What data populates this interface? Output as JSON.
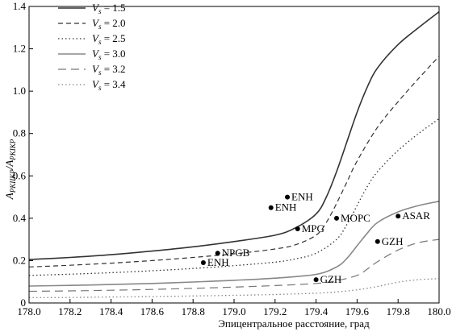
{
  "chart_data": {
    "type": "line",
    "xlabel": "Эпицентральное расстояние, град",
    "ylabel": "A_PKIIKP/A_PKIKP",
    "ylabel_main": "A",
    "ylabel_sub_num": "PKIIKP",
    "ylabel_slash": "/A",
    "ylabel_sub_den": "PKIKP",
    "xlim": [
      178.0,
      180.0
    ],
    "ylim": [
      0.0,
      1.4
    ],
    "x_ticks": [
      178.0,
      178.2,
      178.4,
      178.6,
      178.8,
      179.0,
      179.2,
      179.4,
      179.6,
      179.8,
      180.0
    ],
    "x_tick_labels": [
      "178.0",
      "178.2",
      "178.4",
      "178.6",
      "178.8",
      "179.0",
      "179.2",
      "179.4",
      "179.6",
      "179.8",
      "180.0"
    ],
    "y_ticks": [
      0,
      0.2,
      0.4,
      0.6,
      0.8,
      1.0,
      1.2,
      1.4
    ],
    "y_tick_labels": [
      "0",
      "0.2",
      "0.4",
      "0.6",
      "0.8",
      "1.0",
      "1.2",
      "1.4"
    ],
    "grid": false,
    "legend_position": "top-left",
    "series": [
      {
        "name": "V_s = 1.5",
        "label_prefix": "V",
        "label_sub": "s",
        "label_value": " = 1.5",
        "color": "#333333",
        "dash": "",
        "width": 1.6,
        "points": [
          [
            178.0,
            0.205
          ],
          [
            178.2,
            0.215
          ],
          [
            178.4,
            0.228
          ],
          [
            178.6,
            0.245
          ],
          [
            178.8,
            0.265
          ],
          [
            179.0,
            0.29
          ],
          [
            179.2,
            0.32
          ],
          [
            179.3,
            0.355
          ],
          [
            179.4,
            0.42
          ],
          [
            179.45,
            0.5
          ],
          [
            179.5,
            0.62
          ],
          [
            179.55,
            0.76
          ],
          [
            179.6,
            0.9
          ],
          [
            179.65,
            1.02
          ],
          [
            179.7,
            1.11
          ],
          [
            179.8,
            1.22
          ],
          [
            179.9,
            1.3
          ],
          [
            180.0,
            1.375
          ]
        ]
      },
      {
        "name": "V_s = 2.0",
        "label_prefix": "V",
        "label_sub": "s",
        "label_value": " = 2.0",
        "color": "#333333",
        "dash": "6,4",
        "width": 1.2,
        "points": [
          [
            178.0,
            0.17
          ],
          [
            178.2,
            0.178
          ],
          [
            178.4,
            0.188
          ],
          [
            178.6,
            0.2
          ],
          [
            178.8,
            0.215
          ],
          [
            179.0,
            0.232
          ],
          [
            179.2,
            0.255
          ],
          [
            179.3,
            0.275
          ],
          [
            179.4,
            0.32
          ],
          [
            179.45,
            0.38
          ],
          [
            179.5,
            0.47
          ],
          [
            179.55,
            0.57
          ],
          [
            179.6,
            0.67
          ],
          [
            179.7,
            0.83
          ],
          [
            179.8,
            0.95
          ],
          [
            179.9,
            1.06
          ],
          [
            180.0,
            1.165
          ]
        ]
      },
      {
        "name": "V_s = 2.5",
        "label_prefix": "V",
        "label_sub": "s",
        "label_value": " = 2.5",
        "color": "#333333",
        "dash": "1.5,3",
        "width": 1.3,
        "points": [
          [
            178.0,
            0.13
          ],
          [
            178.2,
            0.136
          ],
          [
            178.4,
            0.143
          ],
          [
            178.6,
            0.152
          ],
          [
            178.8,
            0.163
          ],
          [
            179.0,
            0.176
          ],
          [
            179.2,
            0.193
          ],
          [
            179.3,
            0.208
          ],
          [
            179.4,
            0.235
          ],
          [
            179.5,
            0.3
          ],
          [
            179.55,
            0.37
          ],
          [
            179.6,
            0.46
          ],
          [
            179.65,
            0.55
          ],
          [
            179.7,
            0.62
          ],
          [
            179.8,
            0.72
          ],
          [
            179.9,
            0.8
          ],
          [
            180.0,
            0.87
          ]
        ]
      },
      {
        "name": "V_s = 3.0",
        "label_prefix": "V",
        "label_sub": "s",
        "label_value": " = 3.0",
        "color": "#888888",
        "dash": "",
        "width": 1.6,
        "points": [
          [
            178.0,
            0.08
          ],
          [
            178.2,
            0.083
          ],
          [
            178.4,
            0.087
          ],
          [
            178.6,
            0.092
          ],
          [
            178.8,
            0.099
          ],
          [
            179.0,
            0.107
          ],
          [
            179.2,
            0.117
          ],
          [
            179.4,
            0.135
          ],
          [
            179.5,
            0.17
          ],
          [
            179.55,
            0.21
          ],
          [
            179.6,
            0.27
          ],
          [
            179.65,
            0.33
          ],
          [
            179.7,
            0.38
          ],
          [
            179.8,
            0.43
          ],
          [
            179.9,
            0.46
          ],
          [
            180.0,
            0.48
          ]
        ]
      },
      {
        "name": "V_s = 3.2",
        "label_prefix": "V",
        "label_sub": "s",
        "label_value": " = 3.2",
        "color": "#777777",
        "dash": "10,6",
        "width": 1.2,
        "points": [
          [
            178.0,
            0.055
          ],
          [
            178.2,
            0.057
          ],
          [
            178.4,
            0.06
          ],
          [
            178.6,
            0.064
          ],
          [
            178.8,
            0.069
          ],
          [
            179.0,
            0.075
          ],
          [
            179.2,
            0.082
          ],
          [
            179.4,
            0.092
          ],
          [
            179.5,
            0.105
          ],
          [
            179.6,
            0.13
          ],
          [
            179.65,
            0.16
          ],
          [
            179.7,
            0.195
          ],
          [
            179.8,
            0.25
          ],
          [
            179.9,
            0.285
          ],
          [
            180.0,
            0.3
          ]
        ]
      },
      {
        "name": "V_s = 3.4",
        "label_prefix": "V",
        "label_sub": "s",
        "label_value": " = 3.4",
        "color": "#888888",
        "dash": "1.5,3",
        "width": 1.3,
        "points": [
          [
            178.0,
            0.025
          ],
          [
            178.2,
            0.026
          ],
          [
            178.4,
            0.028
          ],
          [
            178.6,
            0.03
          ],
          [
            178.8,
            0.033
          ],
          [
            179.0,
            0.036
          ],
          [
            179.2,
            0.04
          ],
          [
            179.4,
            0.046
          ],
          [
            179.5,
            0.052
          ],
          [
            179.6,
            0.062
          ],
          [
            179.7,
            0.078
          ],
          [
            179.8,
            0.098
          ],
          [
            179.9,
            0.11
          ],
          [
            180.0,
            0.115
          ]
        ]
      }
    ],
    "stations": [
      {
        "label": "ENH",
        "x": 179.26,
        "y": 0.5
      },
      {
        "label": "ENH",
        "x": 179.18,
        "y": 0.45
      },
      {
        "label": "MPG",
        "x": 179.31,
        "y": 0.35
      },
      {
        "label": "MOPC",
        "x": 179.5,
        "y": 0.4
      },
      {
        "label": "ASAR",
        "x": 179.8,
        "y": 0.41
      },
      {
        "label": "GZH",
        "x": 179.7,
        "y": 0.29
      },
      {
        "label": "NPGB",
        "x": 178.92,
        "y": 0.235
      },
      {
        "label": "ENH",
        "x": 178.85,
        "y": 0.19
      },
      {
        "label": "GZH",
        "x": 179.4,
        "y": 0.11
      }
    ]
  }
}
